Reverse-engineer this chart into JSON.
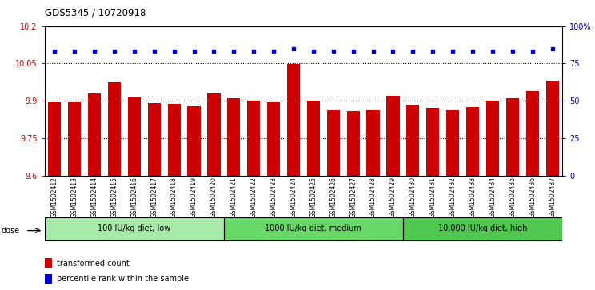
{
  "title": "GDS5345 / 10720918",
  "samples": [
    "GSM1502412",
    "GSM1502413",
    "GSM1502414",
    "GSM1502415",
    "GSM1502416",
    "GSM1502417",
    "GSM1502418",
    "GSM1502419",
    "GSM1502420",
    "GSM1502421",
    "GSM1502422",
    "GSM1502423",
    "GSM1502424",
    "GSM1502425",
    "GSM1502426",
    "GSM1502427",
    "GSM1502428",
    "GSM1502429",
    "GSM1502430",
    "GSM1502431",
    "GSM1502432",
    "GSM1502433",
    "GSM1502434",
    "GSM1502435",
    "GSM1502436",
    "GSM1502437"
  ],
  "bar_values": [
    9.895,
    9.893,
    9.93,
    9.975,
    9.915,
    9.89,
    9.888,
    9.878,
    9.93,
    9.91,
    9.9,
    9.893,
    10.048,
    9.9,
    9.862,
    9.86,
    9.863,
    9.92,
    9.883,
    9.87,
    9.862,
    9.875,
    9.9,
    9.91,
    9.94,
    9.98
  ],
  "percentile_values": [
    83,
    83,
    83,
    83,
    83,
    83,
    83,
    83,
    83,
    83,
    83,
    83,
    85,
    83,
    83,
    83,
    83,
    83,
    83,
    83,
    83,
    83,
    83,
    83,
    83,
    85
  ],
  "bar_color": "#cc0000",
  "dot_color": "#0000cc",
  "ylim_left": [
    9.6,
    10.2
  ],
  "ylim_right": [
    0,
    100
  ],
  "yticks_left": [
    9.6,
    9.75,
    9.9,
    10.05,
    10.2
  ],
  "yticks_right": [
    0,
    25,
    50,
    75,
    100
  ],
  "ytick_labels_left": [
    "9.6",
    "9.75",
    "9.9",
    "10.05",
    "10.2"
  ],
  "ytick_labels_right": [
    "0",
    "25",
    "50",
    "75",
    "100%"
  ],
  "gridlines": [
    9.75,
    9.9,
    10.05
  ],
  "groups": [
    {
      "label": "100 IU/kg diet, low",
      "start": 0,
      "end": 8
    },
    {
      "label": "1000 IU/kg diet, medium",
      "start": 9,
      "end": 17
    },
    {
      "label": "10,000 IU/kg diet, high",
      "start": 18,
      "end": 25
    }
  ],
  "group_colors": [
    "#a8e8a8",
    "#68d868",
    "#50c850"
  ],
  "dose_label": "dose",
  "legend_items": [
    {
      "label": "transformed count",
      "color": "#cc0000"
    },
    {
      "label": "percentile rank within the sample",
      "color": "#0000cc"
    }
  ],
  "tick_area_bg": "#e0e0e0"
}
